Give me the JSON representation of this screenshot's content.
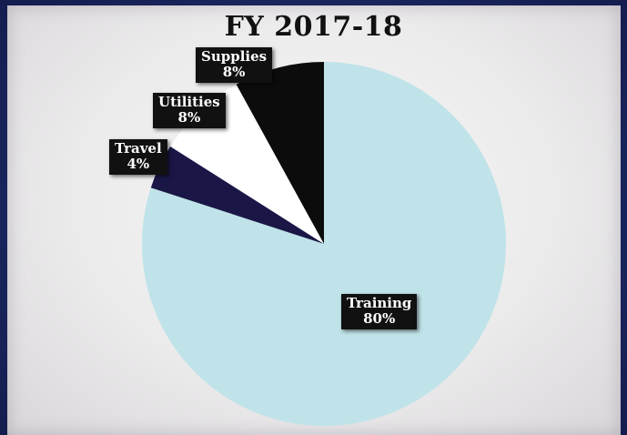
{
  "chart_data": {
    "type": "pie",
    "title": "FY 2017-18",
    "slices": [
      {
        "label": "Training",
        "value": 80,
        "display": "80%",
        "color": "#bfe3e8"
      },
      {
        "label": "Travel",
        "value": 4,
        "display": "4%",
        "color": "#1a1747"
      },
      {
        "label": "Utilities",
        "value": 8,
        "display": "8%",
        "color": "#ffffff"
      },
      {
        "label": "Supplies",
        "value": 8,
        "display": "8%",
        "color": "#0c0c0c"
      }
    ],
    "start_angle_deg": 0,
    "direction": "clockwise"
  }
}
